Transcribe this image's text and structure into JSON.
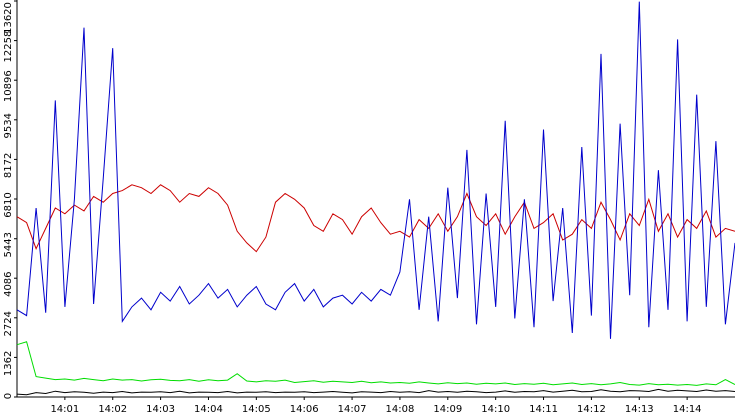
{
  "chart_data": {
    "type": "line",
    "x": [
      0,
      0.2,
      0.4,
      0.6,
      0.8,
      1,
      1.2,
      1.4,
      1.6,
      1.8,
      2,
      2.2,
      2.4,
      2.6,
      2.8,
      3,
      3.2,
      3.4,
      3.6,
      3.8,
      4,
      4.2,
      4.4,
      4.6,
      4.8,
      5,
      5.2,
      5.4,
      5.6,
      5.8,
      6,
      6.2,
      6.4,
      6.6,
      6.8,
      7,
      7.2,
      7.4,
      7.6,
      7.8,
      8,
      8.2,
      8.4,
      8.6,
      8.8,
      9,
      9.2,
      9.4,
      9.6,
      9.8,
      10,
      10.2,
      10.4,
      10.6,
      10.8,
      11,
      11.2,
      11.4,
      11.6,
      11.8,
      12,
      12.2,
      12.4,
      12.6,
      12.8,
      13,
      13.2,
      13.4,
      13.6,
      13.8,
      14,
      14.2,
      14.4,
      14.6,
      14.8,
      15
    ],
    "xlim": [
      0,
      15
    ],
    "xticks": [
      {
        "value": 1,
        "label": "14:01"
      },
      {
        "value": 2,
        "label": "14:02"
      },
      {
        "value": 3,
        "label": "14:03"
      },
      {
        "value": 4,
        "label": "14:04"
      },
      {
        "value": 5,
        "label": "14:05"
      },
      {
        "value": 6,
        "label": "14:06"
      },
      {
        "value": 7,
        "label": "14:07"
      },
      {
        "value": 8,
        "label": "14:08"
      },
      {
        "value": 9,
        "label": "14:09"
      },
      {
        "value": 10,
        "label": "14:10"
      },
      {
        "value": 11,
        "label": "14:11"
      },
      {
        "value": 12,
        "label": "14:12"
      },
      {
        "value": 13,
        "label": "14:13"
      },
      {
        "value": 14,
        "label": "14:14"
      }
    ],
    "ylim": [
      0,
      13620
    ],
    "yticks": [
      0,
      1362,
      2724,
      4086,
      5443,
      6810,
      8172,
      9534,
      10896,
      12258,
      13620
    ],
    "series": [
      {
        "color": "#00dd00",
        "values": [
          1800,
          1900,
          700,
          650,
          600,
          620,
          580,
          640,
          600,
          560,
          620,
          580,
          600,
          550,
          590,
          610,
          570,
          560,
          600,
          540,
          590,
          560,
          580,
          800,
          550,
          520,
          560,
          540,
          580,
          500,
          530,
          560,
          510,
          540,
          520,
          500,
          540,
          490,
          520,
          480,
          500,
          470,
          520,
          480,
          450,
          490,
          460,
          480,
          440,
          470,
          450,
          480,
          430,
          460,
          440,
          470,
          420,
          450,
          480,
          430,
          460,
          420,
          450,
          500,
          430,
          410,
          460,
          420,
          440,
          410,
          430,
          400,
          450,
          420,
          600,
          430
        ]
      },
      {
        "color": "#000000",
        "values": [
          100,
          80,
          150,
          120,
          200,
          150,
          180,
          160,
          130,
          170,
          150,
          190,
          140,
          170,
          160,
          180,
          150,
          200,
          140,
          170,
          160,
          150,
          190,
          140,
          170,
          160,
          180,
          150,
          170,
          160,
          180,
          150,
          170,
          190,
          160,
          140,
          180,
          170,
          150,
          190,
          160,
          180,
          150,
          220,
          170,
          190,
          160,
          200,
          180,
          150,
          170,
          210,
          160,
          190,
          180,
          220,
          170,
          200,
          230,
          180,
          190,
          250,
          200,
          180,
          220,
          210,
          190,
          260,
          200,
          230,
          210,
          190,
          240,
          200,
          220,
          190
        ]
      },
      {
        "color": "#cc0000",
        "values": [
          6200,
          6000,
          5100,
          5800,
          6500,
          6300,
          6600,
          6400,
          6900,
          6700,
          7000,
          7100,
          7300,
          7200,
          7000,
          7300,
          7100,
          6700,
          7000,
          6900,
          7200,
          7000,
          6600,
          5700,
          5300,
          5000,
          5500,
          6700,
          7000,
          6800,
          6500,
          5900,
          5700,
          6300,
          6100,
          5600,
          6200,
          6500,
          6000,
          5600,
          5700,
          5500,
          6100,
          5800,
          6300,
          5700,
          6200,
          7000,
          6200,
          5900,
          6300,
          5600,
          6200,
          6700,
          5800,
          6000,
          6300,
          5400,
          5600,
          6100,
          5800,
          6700,
          6100,
          5400,
          6300,
          5900,
          6800,
          5700,
          6300,
          5500,
          6100,
          5800,
          6400,
          5500,
          5800,
          5700
        ]
      },
      {
        "color": "#0000cc",
        "values": [
          3000,
          2800,
          6500,
          2900,
          10200,
          3100,
          6800,
          12700,
          3200,
          7500,
          12000,
          2600,
          3100,
          3400,
          3000,
          3600,
          3300,
          3800,
          3200,
          3500,
          3900,
          3400,
          3700,
          3100,
          3500,
          3800,
          3200,
          3000,
          3600,
          3900,
          3300,
          3700,
          3100,
          3400,
          3500,
          3200,
          3600,
          3300,
          3700,
          3500,
          4300,
          6800,
          3000,
          6200,
          2600,
          7200,
          3400,
          8500,
          2500,
          7000,
          3100,
          9500,
          2700,
          6800,
          2400,
          9200,
          3300,
          6500,
          2200,
          8600,
          2800,
          11800,
          2000,
          9400,
          3500,
          13600,
          2400,
          7800,
          3000,
          12300,
          2600,
          10400,
          3100,
          8800,
          2500,
          5300
        ]
      }
    ]
  }
}
